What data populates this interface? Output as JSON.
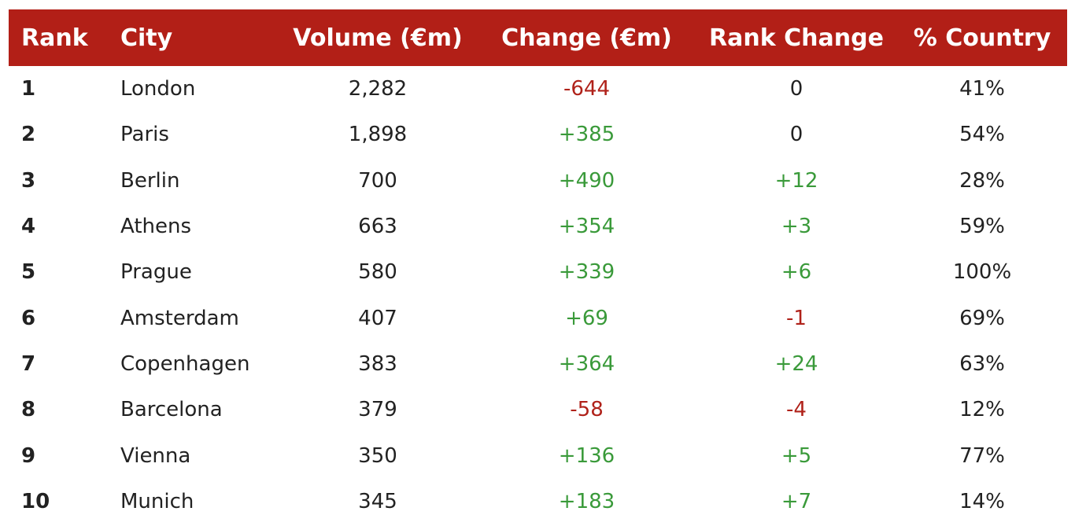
{
  "headers": {
    "rank": "Rank",
    "city": "City",
    "volume": "Volume (€m)",
    "change": "Change (€m)",
    "rank_change": "Rank Change",
    "pct_country": "% Country"
  },
  "colors": {
    "header_bg": "#b21f17",
    "positive": "#3a9a3a",
    "negative": "#b0221a"
  },
  "rows": [
    {
      "rank": "1",
      "city": "London",
      "volume": "2,282",
      "change": "-644",
      "rank_change": "0",
      "pct_country": "41%"
    },
    {
      "rank": "2",
      "city": "Paris",
      "volume": "1,898",
      "change": "+385",
      "rank_change": "0",
      "pct_country": "54%"
    },
    {
      "rank": "3",
      "city": "Berlin",
      "volume": "700",
      "change": "+490",
      "rank_change": "+12",
      "pct_country": "28%"
    },
    {
      "rank": "4",
      "city": "Athens",
      "volume": "663",
      "change": "+354",
      "rank_change": "+3",
      "pct_country": "59%"
    },
    {
      "rank": "5",
      "city": "Prague",
      "volume": "580",
      "change": "+339",
      "rank_change": "+6",
      "pct_country": "100%"
    },
    {
      "rank": "6",
      "city": "Amsterdam",
      "volume": "407",
      "change": "+69",
      "rank_change": "-1",
      "pct_country": "69%"
    },
    {
      "rank": "7",
      "city": "Copenhagen",
      "volume": "383",
      "change": "+364",
      "rank_change": "+24",
      "pct_country": "63%"
    },
    {
      "rank": "8",
      "city": "Barcelona",
      "volume": "379",
      "change": "-58",
      "rank_change": "-4",
      "pct_country": "12%"
    },
    {
      "rank": "9",
      "city": "Vienna",
      "volume": "350",
      "change": "+136",
      "rank_change": "+5",
      "pct_country": "77%"
    },
    {
      "rank": "10",
      "city": "Munich",
      "volume": "345",
      "change": "+183",
      "rank_change": "+7",
      "pct_country": "14%"
    }
  ]
}
